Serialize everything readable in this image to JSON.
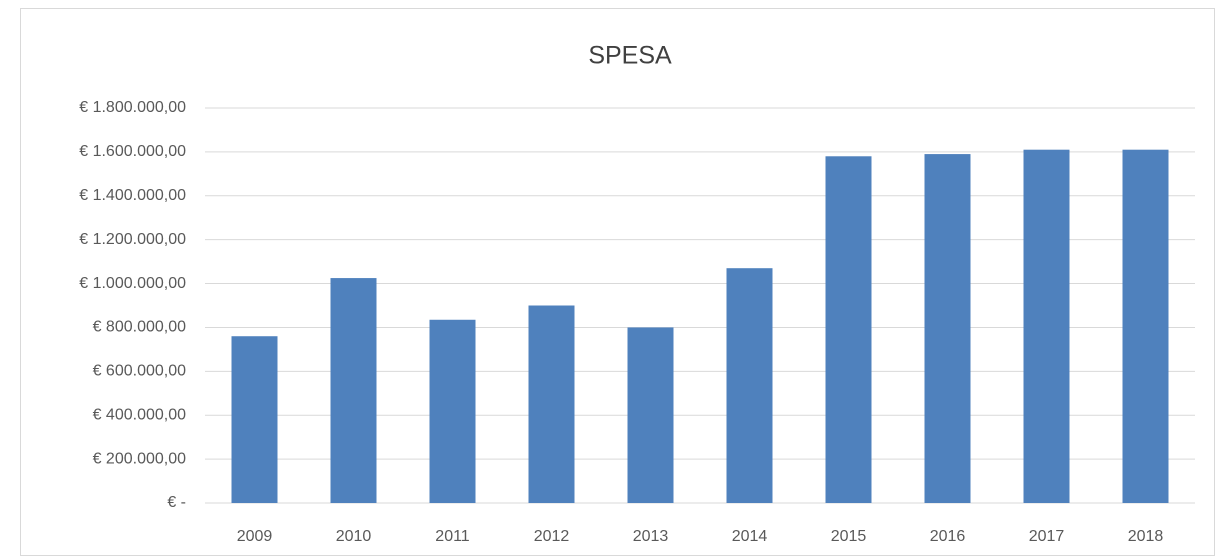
{
  "chart_data": {
    "type": "bar",
    "title": "SPESA",
    "categories": [
      "2009",
      "2010",
      "2011",
      "2012",
      "2013",
      "2014",
      "2015",
      "2016",
      "2017",
      "2018"
    ],
    "values": [
      760000,
      1025000,
      835000,
      900000,
      800000,
      1070000,
      1580000,
      1590000,
      1610000,
      1610000
    ],
    "color": "#4f81bd",
    "ylim": [
      0,
      1800000
    ],
    "yticks": [
      {
        "value": 0,
        "label": "€ -"
      },
      {
        "value": 200000,
        "label": "€ 200.000,00"
      },
      {
        "value": 400000,
        "label": "€ 400.000,00"
      },
      {
        "value": 600000,
        "label": "€ 600.000,00"
      },
      {
        "value": 800000,
        "label": "€ 800.000,00"
      },
      {
        "value": 1000000,
        "label": "€ 1.000.000,00"
      },
      {
        "value": 1200000,
        "label": "€ 1.200.000,00"
      },
      {
        "value": 1400000,
        "label": "€ 1.400.000,00"
      },
      {
        "value": 1600000,
        "label": "€ 1.600.000,00"
      },
      {
        "value": 1800000,
        "label": "€ 1.800.000,00"
      }
    ],
    "grid": true
  }
}
